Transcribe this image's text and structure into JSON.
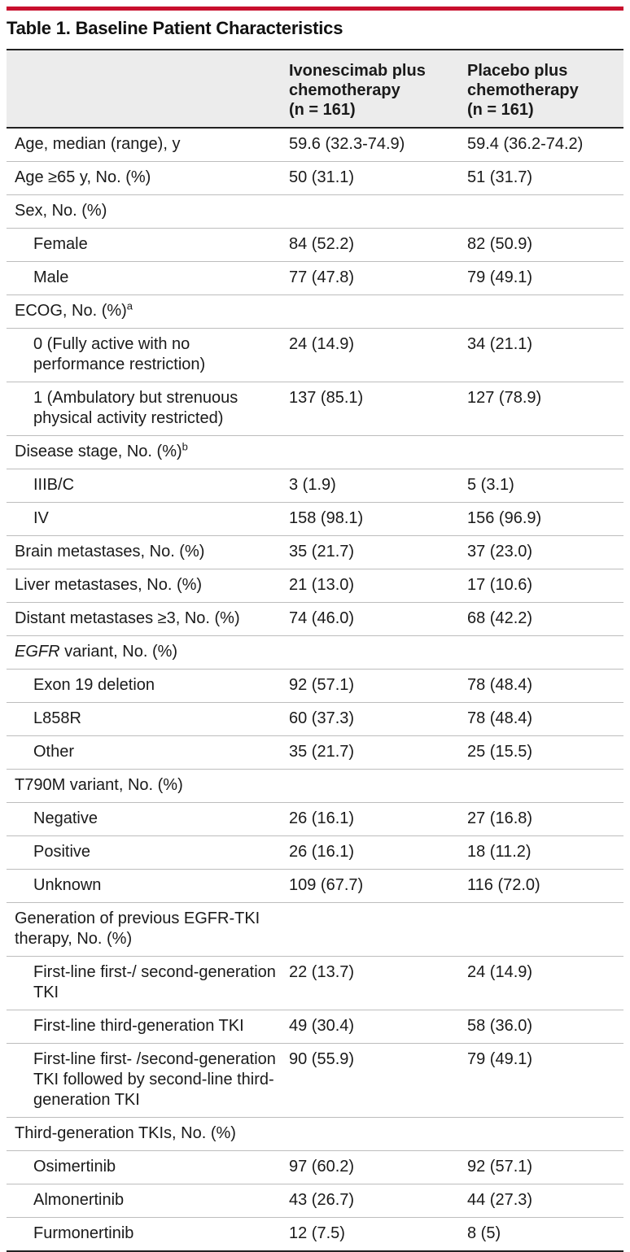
{
  "title": "Table 1. Baseline Patient Characteristics",
  "accent_color": "#c8102e",
  "header": {
    "col1": "",
    "col2": "Ivonescimab plus chemotherapy (n = 161)",
    "col2_lines": [
      "Ivonescimab plus",
      "chemotherapy",
      "(n = 161)"
    ],
    "col3_lines": [
      "Placebo plus",
      "chemotherapy",
      "(n = 161)"
    ]
  },
  "rows": [
    {
      "label": "Age, median (range), y",
      "a": "59.6 (32.3-74.9)",
      "b": "59.4 (36.2-74.2)"
    },
    {
      "label": "Age ≥65 y, No. (%)",
      "a": "50 (31.1)",
      "b": "51 (31.7)"
    },
    {
      "label": "Sex, No. (%)",
      "a": "",
      "b": ""
    },
    {
      "label": "Female",
      "a": "84 (52.2)",
      "b": "82 (50.9)"
    },
    {
      "label": "Male",
      "a": "77 (47.8)",
      "b": "79 (49.1)"
    },
    {
      "label": "ECOG, No. (%)",
      "sup": "a",
      "a": "",
      "b": ""
    },
    {
      "label": "0 (Fully active with no performance restriction)",
      "a": "24 (14.9)",
      "b": "34 (21.1)"
    },
    {
      "label": "1 (Ambulatory but strenuous physical activity restricted)",
      "a": "137 (85.1)",
      "b": "127 (78.9)"
    },
    {
      "label": "Disease stage, No. (%)",
      "sup": "b",
      "a": "",
      "b": ""
    },
    {
      "label": "IIIB/C",
      "a": "3 (1.9)",
      "b": "5 (3.1)"
    },
    {
      "label": "IV",
      "a": "158 (98.1)",
      "b": "156 (96.9)"
    },
    {
      "label": "Brain metastases, No. (%)",
      "a": "35 (21.7)",
      "b": "37 (23.0)"
    },
    {
      "label": "Liver metastases, No. (%)",
      "a": "21 (13.0)",
      "b": "17 (10.6)"
    },
    {
      "label": "Distant metastases ≥3, No. (%)",
      "a": "74 (46.0)",
      "b": "68 (42.2)"
    },
    {
      "label_italic": "EGFR",
      "label_rest": " variant, No. (%)",
      "a": "",
      "b": ""
    },
    {
      "label": "Exon 19 deletion",
      "a": "92 (57.1)",
      "b": "78 (48.4)"
    },
    {
      "label": "L858R",
      "a": "60 (37.3)",
      "b": "78 (48.4)"
    },
    {
      "label": "Other",
      "a": "35 (21.7)",
      "b": "25 (15.5)"
    },
    {
      "label": "T790M variant, No. (%)",
      "a": "",
      "b": ""
    },
    {
      "label": "Negative",
      "a": "26 (16.1)",
      "b": "27 (16.8)"
    },
    {
      "label": "Positive",
      "a": "26 (16.1)",
      "b": "18 (11.2)"
    },
    {
      "label": "Unknown",
      "a": "109 (67.7)",
      "b": "116 (72.0)"
    },
    {
      "label": "Generation of previous EGFR-TKI therapy, No. (%)",
      "a": "",
      "b": ""
    },
    {
      "label": "First-line first-/ second-generation TKI",
      "a": "22 (13.7)",
      "b": "24 (14.9)"
    },
    {
      "label": "First-line third-generation TKI",
      "a": "49 (30.4)",
      "b": "58 (36.0)"
    },
    {
      "label": "First-line first- /second-generation TKI followed by second-line third-generation TKI",
      "a": "90 (55.9)",
      "b": "79 (49.1)"
    },
    {
      "label": "Third-generation TKIs, No. (%)",
      "a": "",
      "b": ""
    },
    {
      "label": "Osimertinib",
      "a": "97 (60.2)",
      "b": "92 (57.1)"
    },
    {
      "label": "Almonertinib",
      "a": "43 (26.7)",
      "b": "44 (27.3)"
    },
    {
      "label": "Furmonertinib",
      "a": "12 (7.5)",
      "b": "8 (5)"
    }
  ]
}
